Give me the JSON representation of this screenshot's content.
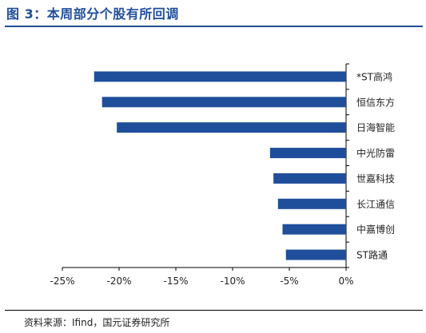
{
  "title": "图 3：本周部分个股有所回调",
  "source": "资料来源：Ifind，国元证券研究所",
  "chart_data": {
    "type": "bar",
    "orientation": "horizontal",
    "categories": [
      "*ST高鸿",
      "恒信东方",
      "日海智能",
      "中光防雷",
      "世嘉科技",
      "长江通信",
      "中嘉博创",
      "ST路通"
    ],
    "values": [
      -22.2,
      -21.5,
      -20.2,
      -6.7,
      -6.4,
      -6.0,
      -5.6,
      -5.3
    ],
    "xlim": [
      -25,
      0
    ],
    "xticks": [
      -25,
      -20,
      -15,
      -10,
      -5,
      0
    ],
    "xtick_labels": [
      "-25%",
      "-20%",
      "-15%",
      "-10%",
      "-5%",
      "0%"
    ],
    "category_axis_side": "right",
    "bar_color": "#1f4e9a",
    "grid": false,
    "legend": "none"
  }
}
